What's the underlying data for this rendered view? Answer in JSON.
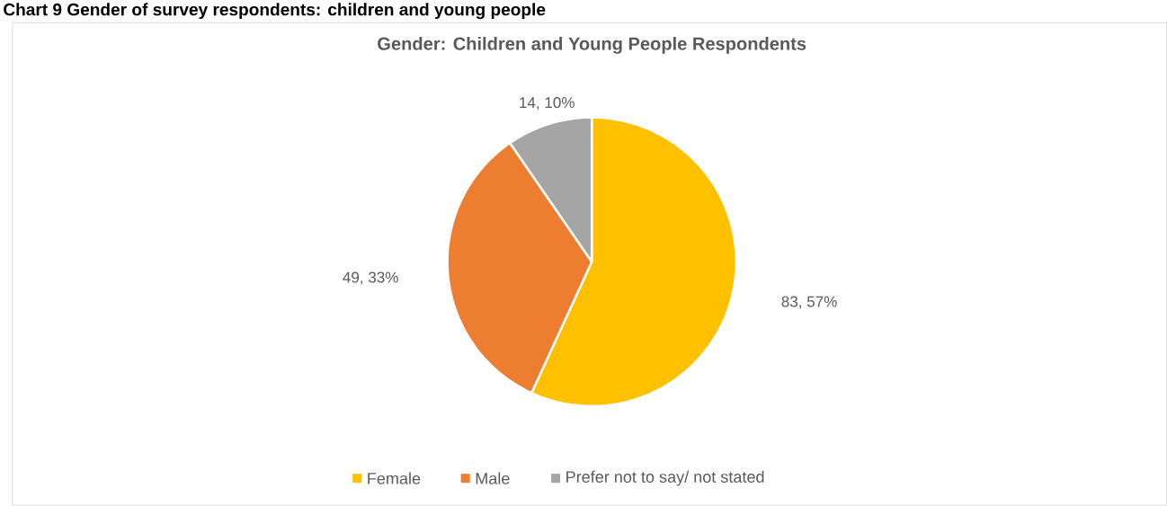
{
  "chart_data": {
    "type": "pie",
    "title": "Gender: Children and Young People Respondents",
    "annotations": [
      "Chart 9 Gender of survey respondents: children and young people"
    ],
    "categories": [
      "Female",
      "Male",
      "Prefer not to say/ not stated"
    ],
    "values": [
      83,
      49,
      14
    ],
    "colors": [
      "#ffc000",
      "#ed7d31",
      "#a5a5a5"
    ],
    "value_labels": [
      "83, 57%",
      "49, 33%",
      "14, 10%"
    ],
    "legend": "bottom"
  }
}
